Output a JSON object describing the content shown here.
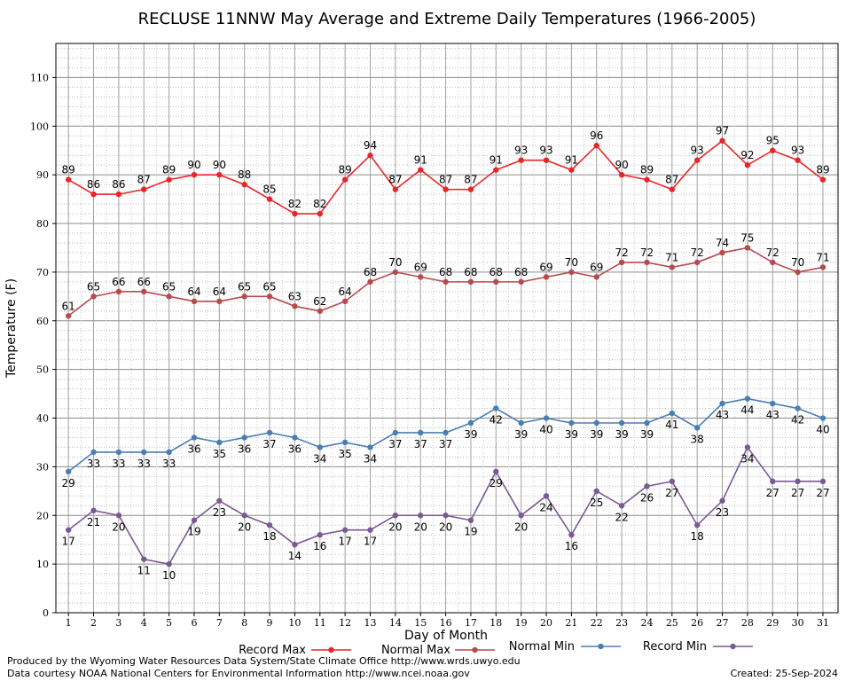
{
  "chart_data": {
    "type": "line",
    "title": "RECLUSE 11NNW May Average and Extreme Daily Temperatures (1966-2005)",
    "xlabel": "Day of Month",
    "ylabel": "Temperature (F)",
    "x": [
      1,
      2,
      3,
      4,
      5,
      6,
      7,
      8,
      9,
      10,
      11,
      12,
      13,
      14,
      15,
      16,
      17,
      18,
      19,
      20,
      21,
      22,
      23,
      24,
      25,
      26,
      27,
      28,
      29,
      30,
      31
    ],
    "ylim": [
      0,
      117
    ],
    "yticks": [
      0,
      10,
      20,
      30,
      40,
      50,
      60,
      70,
      80,
      90,
      100,
      110
    ],
    "grid": true,
    "legend_position": "bottom",
    "series": [
      {
        "name": "Record Max",
        "color": "#e8262a",
        "values": [
          89,
          86,
          86,
          87,
          89,
          90,
          90,
          88,
          85,
          82,
          82,
          89,
          94,
          87,
          91,
          87,
          87,
          91,
          93,
          93,
          91,
          96,
          90,
          89,
          87,
          93,
          97,
          92,
          95,
          93,
          89
        ]
      },
      {
        "name": "Normal Max",
        "color": "#b84a4e",
        "values": [
          61,
          65,
          66,
          66,
          65,
          64,
          64,
          65,
          65,
          63,
          62,
          64,
          68,
          70,
          69,
          68,
          68,
          68,
          68,
          69,
          70,
          69,
          72,
          72,
          71,
          72,
          74,
          75,
          72,
          70,
          71
        ]
      },
      {
        "name": "Normal Min",
        "color": "#4a7fb5",
        "values": [
          29,
          33,
          33,
          33,
          33,
          36,
          35,
          36,
          37,
          36,
          34,
          35,
          34,
          37,
          37,
          37,
          39,
          42,
          39,
          40,
          39,
          39,
          39,
          39,
          41,
          38,
          43,
          44,
          43,
          42,
          40
        ]
      },
      {
        "name": "Record Min",
        "color": "#7b5a94",
        "values": [
          17,
          21,
          20,
          11,
          10,
          19,
          23,
          20,
          18,
          14,
          16,
          17,
          17,
          20,
          20,
          20,
          19,
          29,
          20,
          24,
          16,
          25,
          22,
          26,
          27,
          18,
          23,
          34,
          27,
          27,
          27
        ]
      }
    ]
  },
  "footer": {
    "produced_by": "Produced by the Wyoming Water Resources Data System/State Climate Office http://www.wrds.uwyo.edu",
    "courtesy": "Data courtesy NOAA National Centers for Environmental Information http://www.ncei.noaa.gov",
    "created": "Created:  25-Sep-2024"
  }
}
